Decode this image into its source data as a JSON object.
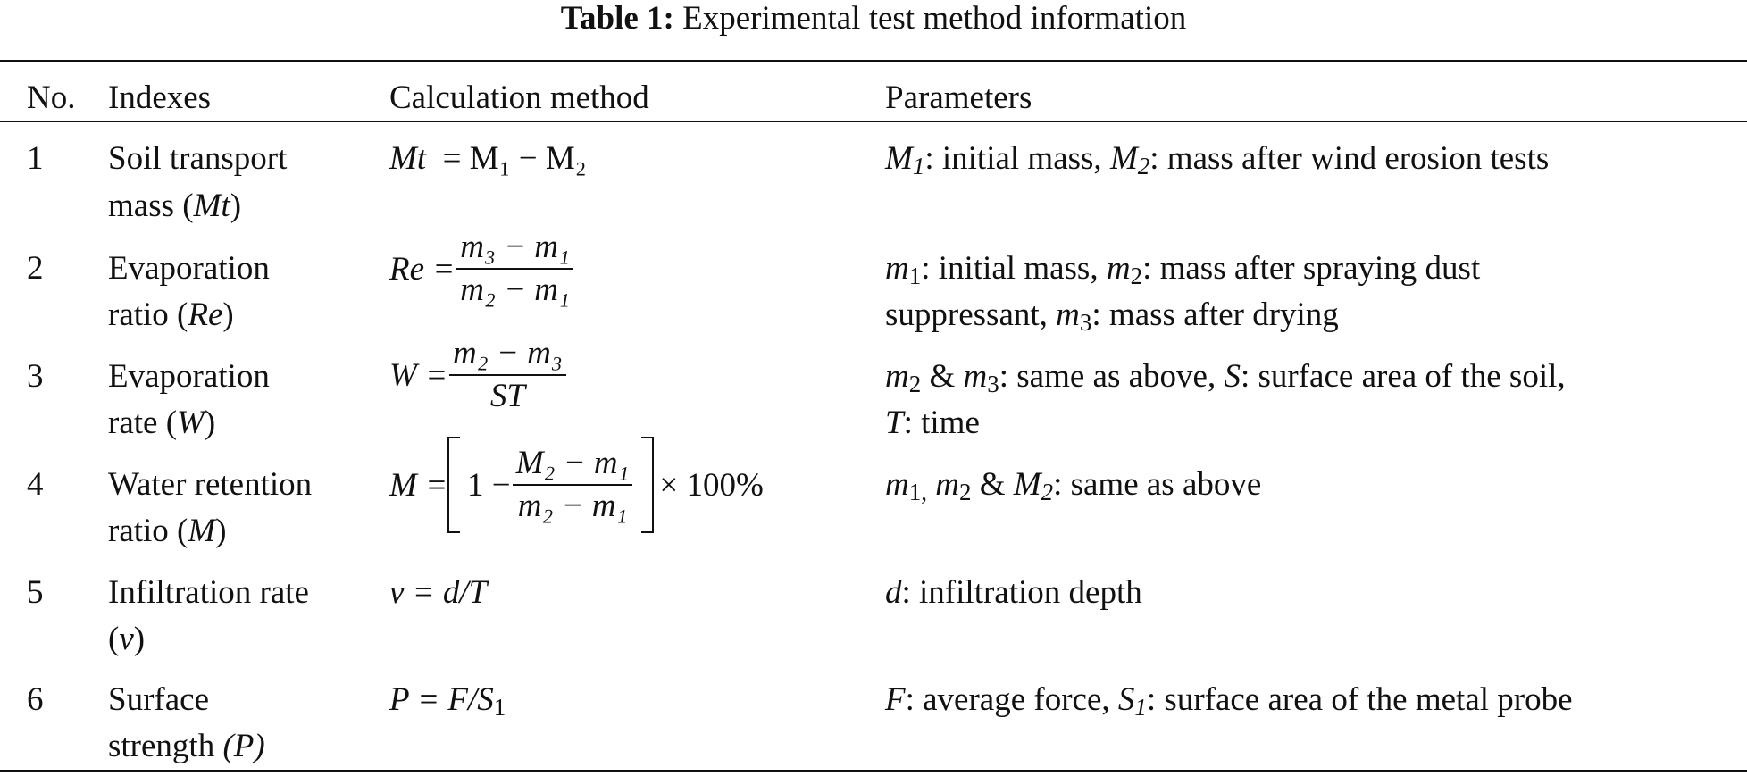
{
  "caption": {
    "label": "Table 1:",
    "text": "Experimental test method information"
  },
  "table": {
    "headers": {
      "no": "No.",
      "indexes": "Indexes",
      "calc": "Calculation method",
      "params": "Parameters"
    },
    "rows": [
      {
        "no": "1",
        "index_line1": "Soil transport",
        "index_line2_pre": "mass (",
        "index_sym": "Mt",
        "index_line2_post": ")",
        "formula_lhs": "Mt",
        "formula_rhs": "= M₁ − M₂",
        "params": [
          {
            "sym": "M",
            "sub": "1",
            "text": ": initial mass, "
          },
          {
            "sym": "M",
            "sub": "2",
            "text": ": mass after wind erosion tests"
          }
        ]
      },
      {
        "no": "2",
        "index_line1": "Evaporation",
        "index_line2_pre": "ratio (",
        "index_sym": "Re",
        "index_line2_post": ")",
        "formula_lhs": "Re =",
        "frac_num": "m₃ − m₁",
        "frac_den": "m₂ − m₁",
        "params_line1": ": initial mass, ",
        "params_line1b": ": mass after spraying dust",
        "params_line2": "suppressant, ",
        "params_line2b": ": mass after drying"
      },
      {
        "no": "3",
        "index_line1": "Evaporation",
        "index_line2_pre": "rate (",
        "index_sym": "W",
        "index_line2_post": ")",
        "formula_lhs": "W =",
        "frac_num": "m₂ − m₃",
        "frac_den": "ST",
        "params_line1": ": same as above, ",
        "params_line1b": ": surface area of the soil,",
        "params_line2": ": time"
      },
      {
        "no": "4",
        "index_line1": "Water retention",
        "index_line2_pre": "ratio (",
        "index_sym": "M",
        "index_line2_post": ")",
        "formula_lhs": "M =",
        "formula_one": "1 −",
        "frac_num": "M₂ − m₁",
        "frac_den": "m₂ − m₁",
        "formula_tail": "× 100%",
        "params_text": ": same as above"
      },
      {
        "no": "5",
        "index_line1": "Infiltration rate",
        "index_line2_pre": "(",
        "index_sym": "v",
        "index_line2_post": ")",
        "formula": "v = d/T",
        "params_sym": "d",
        "params_text": ": infiltration depth"
      },
      {
        "no": "6",
        "index_line1": "Surface",
        "index_line2_pre": "strength ",
        "index_sym": "(P)",
        "index_line2_post": "",
        "formula_pre": "P = F/S",
        "formula_sub": "1",
        "params_sym1": "F",
        "params_text1": ": average force, ",
        "params_sym2": "S",
        "params_sub2": "1",
        "params_text2": ": surface area of the metal probe"
      }
    ]
  }
}
